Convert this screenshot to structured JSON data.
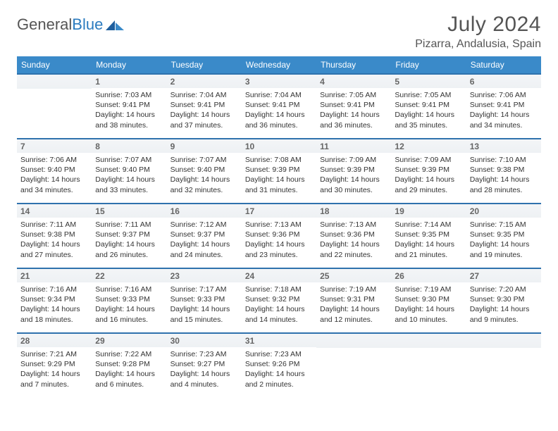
{
  "brand": {
    "name_part1": "General",
    "name_part2": "Blue"
  },
  "title": "July 2024",
  "location": "Pizarra, Andalusia, Spain",
  "colors": {
    "header_bg": "#3a8ac9",
    "rule": "#2f72ad",
    "text": "#333333",
    "muted": "#666666",
    "logo_blue": "#2b7bbf"
  },
  "weekdays": [
    "Sunday",
    "Monday",
    "Tuesday",
    "Wednesday",
    "Thursday",
    "Friday",
    "Saturday"
  ],
  "start_offset": 1,
  "days": [
    {
      "n": 1,
      "sr": "7:03 AM",
      "ss": "9:41 PM",
      "dl": "14 hours and 38 minutes."
    },
    {
      "n": 2,
      "sr": "7:04 AM",
      "ss": "9:41 PM",
      "dl": "14 hours and 37 minutes."
    },
    {
      "n": 3,
      "sr": "7:04 AM",
      "ss": "9:41 PM",
      "dl": "14 hours and 36 minutes."
    },
    {
      "n": 4,
      "sr": "7:05 AM",
      "ss": "9:41 PM",
      "dl": "14 hours and 36 minutes."
    },
    {
      "n": 5,
      "sr": "7:05 AM",
      "ss": "9:41 PM",
      "dl": "14 hours and 35 minutes."
    },
    {
      "n": 6,
      "sr": "7:06 AM",
      "ss": "9:41 PM",
      "dl": "14 hours and 34 minutes."
    },
    {
      "n": 7,
      "sr": "7:06 AM",
      "ss": "9:40 PM",
      "dl": "14 hours and 34 minutes."
    },
    {
      "n": 8,
      "sr": "7:07 AM",
      "ss": "9:40 PM",
      "dl": "14 hours and 33 minutes."
    },
    {
      "n": 9,
      "sr": "7:07 AM",
      "ss": "9:40 PM",
      "dl": "14 hours and 32 minutes."
    },
    {
      "n": 10,
      "sr": "7:08 AM",
      "ss": "9:39 PM",
      "dl": "14 hours and 31 minutes."
    },
    {
      "n": 11,
      "sr": "7:09 AM",
      "ss": "9:39 PM",
      "dl": "14 hours and 30 minutes."
    },
    {
      "n": 12,
      "sr": "7:09 AM",
      "ss": "9:39 PM",
      "dl": "14 hours and 29 minutes."
    },
    {
      "n": 13,
      "sr": "7:10 AM",
      "ss": "9:38 PM",
      "dl": "14 hours and 28 minutes."
    },
    {
      "n": 14,
      "sr": "7:11 AM",
      "ss": "9:38 PM",
      "dl": "14 hours and 27 minutes."
    },
    {
      "n": 15,
      "sr": "7:11 AM",
      "ss": "9:37 PM",
      "dl": "14 hours and 26 minutes."
    },
    {
      "n": 16,
      "sr": "7:12 AM",
      "ss": "9:37 PM",
      "dl": "14 hours and 24 minutes."
    },
    {
      "n": 17,
      "sr": "7:13 AM",
      "ss": "9:36 PM",
      "dl": "14 hours and 23 minutes."
    },
    {
      "n": 18,
      "sr": "7:13 AM",
      "ss": "9:36 PM",
      "dl": "14 hours and 22 minutes."
    },
    {
      "n": 19,
      "sr": "7:14 AM",
      "ss": "9:35 PM",
      "dl": "14 hours and 21 minutes."
    },
    {
      "n": 20,
      "sr": "7:15 AM",
      "ss": "9:35 PM",
      "dl": "14 hours and 19 minutes."
    },
    {
      "n": 21,
      "sr": "7:16 AM",
      "ss": "9:34 PM",
      "dl": "14 hours and 18 minutes."
    },
    {
      "n": 22,
      "sr": "7:16 AM",
      "ss": "9:33 PM",
      "dl": "14 hours and 16 minutes."
    },
    {
      "n": 23,
      "sr": "7:17 AM",
      "ss": "9:33 PM",
      "dl": "14 hours and 15 minutes."
    },
    {
      "n": 24,
      "sr": "7:18 AM",
      "ss": "9:32 PM",
      "dl": "14 hours and 14 minutes."
    },
    {
      "n": 25,
      "sr": "7:19 AM",
      "ss": "9:31 PM",
      "dl": "14 hours and 12 minutes."
    },
    {
      "n": 26,
      "sr": "7:19 AM",
      "ss": "9:30 PM",
      "dl": "14 hours and 10 minutes."
    },
    {
      "n": 27,
      "sr": "7:20 AM",
      "ss": "9:30 PM",
      "dl": "14 hours and 9 minutes."
    },
    {
      "n": 28,
      "sr": "7:21 AM",
      "ss": "9:29 PM",
      "dl": "14 hours and 7 minutes."
    },
    {
      "n": 29,
      "sr": "7:22 AM",
      "ss": "9:28 PM",
      "dl": "14 hours and 6 minutes."
    },
    {
      "n": 30,
      "sr": "7:23 AM",
      "ss": "9:27 PM",
      "dl": "14 hours and 4 minutes."
    },
    {
      "n": 31,
      "sr": "7:23 AM",
      "ss": "9:26 PM",
      "dl": "14 hours and 2 minutes."
    }
  ],
  "labels": {
    "sunrise": "Sunrise:",
    "sunset": "Sunset:",
    "daylight": "Daylight:"
  }
}
